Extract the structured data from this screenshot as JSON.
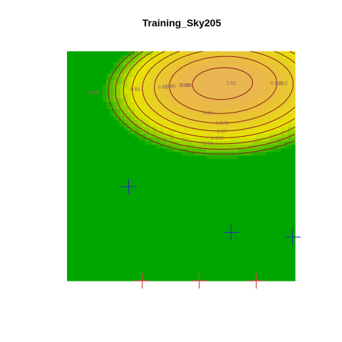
{
  "chart_data": {
    "type": "heatmap",
    "title": "Training_Sky205",
    "xlabel": "",
    "ylabel": "",
    "contour_levels": [
      {
        "label": "0.605",
        "value": 0.605
      },
      {
        "label": "0.61",
        "value": 0.61
      },
      {
        "label": "0.615",
        "value": 0.615
      },
      {
        "label": "0.62",
        "value": 0.62
      },
      {
        "label": "0.61",
        "value": 0.61
      },
      {
        "label": "0.615",
        "value": 0.615
      },
      {
        "label": "0.61",
        "value": 0.61
      },
      {
        "label": "0.605",
        "value": 0.605
      },
      {
        "label": "0.6",
        "value": 0.6
      },
      {
        "label": "0.595",
        "value": 0.595
      },
      {
        "label": "0.59",
        "value": 0.59
      },
      {
        "label": "0.585",
        "value": 0.585
      },
      {
        "label": "0.58",
        "value": 0.58
      },
      {
        "label": "0.575",
        "value": 0.575
      },
      {
        "label": "0.57",
        "value": 0.57
      },
      {
        "label": "0.565",
        "value": 0.565
      },
      {
        "label": "0.56",
        "value": 0.56
      }
    ],
    "color_scale": [
      "#00a600",
      "#e6e600",
      "#eab64c",
      "#ecb176",
      "#f2f2f2"
    ],
    "markers": [
      {
        "kind": "blue-cross",
        "x": 0.27,
        "y": 0.41
      },
      {
        "kind": "blue-cross",
        "x": 0.72,
        "y": 0.21
      },
      {
        "kind": "blue-cross",
        "x": 0.99,
        "y": 0.19
      },
      {
        "kind": "red-cross",
        "x": 0.33,
        "y": 0.0
      },
      {
        "kind": "red-cross",
        "x": 0.58,
        "y": 0.0
      },
      {
        "kind": "red-cross",
        "x": 0.83,
        "y": 0.0
      }
    ],
    "xlim": [
      0,
      1
    ],
    "ylim": [
      0,
      1
    ],
    "grid": false,
    "legend": "none"
  }
}
